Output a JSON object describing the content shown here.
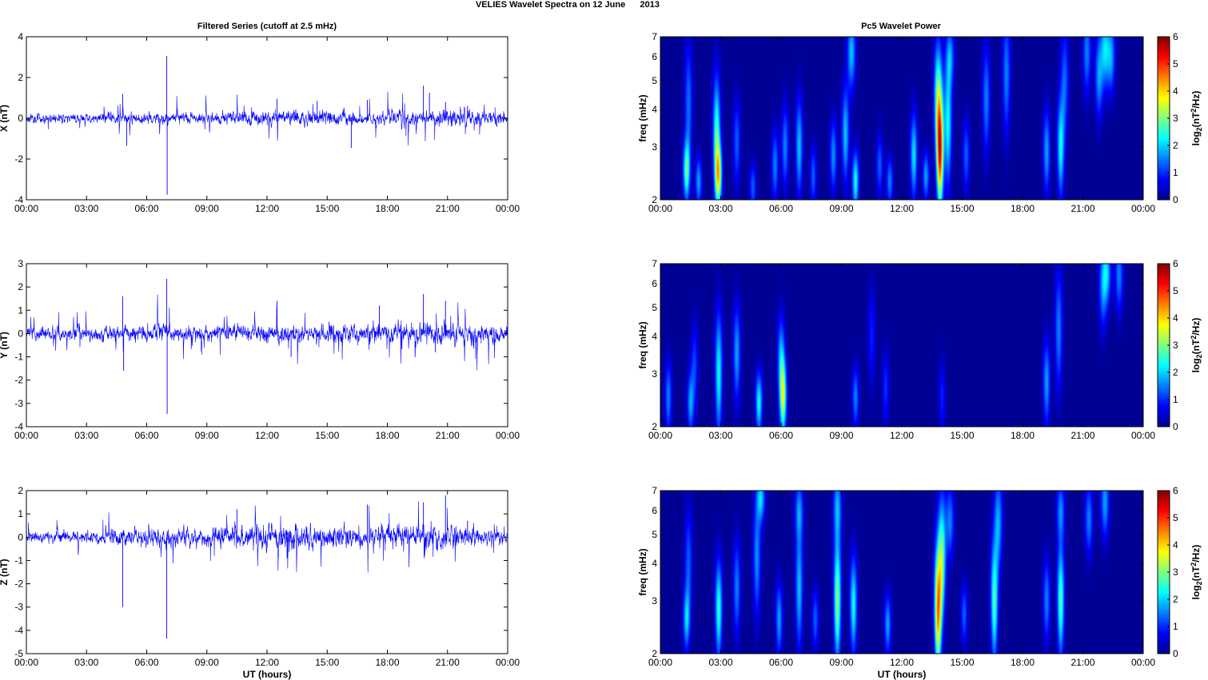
{
  "figure": {
    "suptitle": "VELIES Wavelet Spectra on 12 June      2013",
    "left_title": "Filtered Series (cutoff at 2.5 mHz)",
    "right_title": "Pc5 Wavelet Power",
    "colors": {
      "trace": "#0000ff",
      "axis": "#000000",
      "background": "#ffffff"
    }
  },
  "chart_data": [
    {
      "type": "line",
      "panel": "X",
      "xlabel": "",
      "ylabel": "X (nT)",
      "xlim": [
        0,
        24
      ],
      "ylim": [
        -4,
        4
      ],
      "xticks": [
        0,
        3,
        6,
        9,
        12,
        15,
        18,
        21,
        24
      ],
      "xticklabels": [
        "00:00",
        "03:00",
        "06:00",
        "09:00",
        "12:00",
        "15:00",
        "18:00",
        "21:00",
        "00:00"
      ],
      "yticks": [
        -4,
        -2,
        0,
        2,
        4
      ],
      "yticklabels": [
        "-4",
        "-2",
        "0",
        "2",
        "4"
      ],
      "noise_profile": [
        [
          0,
          0.18
        ],
        [
          4,
          0.18
        ],
        [
          6,
          0.22
        ],
        [
          10,
          0.22
        ],
        [
          12,
          0.3
        ],
        [
          15,
          0.3
        ],
        [
          16.5,
          0.2
        ],
        [
          18,
          0.26
        ],
        [
          19.5,
          0.32
        ],
        [
          21,
          0.34
        ],
        [
          24,
          0.22
        ]
      ],
      "spikes": [
        [
          4.8,
          1.2
        ],
        [
          5.0,
          -1.35
        ],
        [
          7.0,
          3.05
        ],
        [
          7.02,
          -3.75
        ],
        [
          12.5,
          0.95
        ],
        [
          14.5,
          0.85
        ],
        [
          16.2,
          -1.45
        ],
        [
          17.0,
          0.9
        ],
        [
          19.8,
          1.6
        ],
        [
          20.1,
          1.25
        ],
        [
          20.9,
          0.8
        ],
        [
          22.0,
          0.6
        ]
      ]
    },
    {
      "type": "line",
      "panel": "Y",
      "xlabel": "",
      "ylabel": "Y (nT)",
      "xlim": [
        0,
        24
      ],
      "ylim": [
        -4,
        3
      ],
      "xticks": [
        0,
        3,
        6,
        9,
        12,
        15,
        18,
        21,
        24
      ],
      "xticklabels": [
        "00:00",
        "03:00",
        "06:00",
        "09:00",
        "12:00",
        "15:00",
        "18:00",
        "21:00",
        "00:00"
      ],
      "yticks": [
        -4,
        -3,
        -2,
        -1,
        0,
        1,
        2,
        3
      ],
      "yticklabels": [
        "-4",
        "-3",
        "-2",
        "-1",
        "0",
        "1",
        "2",
        "3"
      ],
      "noise_profile": [
        [
          0,
          0.22
        ],
        [
          4,
          0.24
        ],
        [
          6,
          0.3
        ],
        [
          9,
          0.24
        ],
        [
          12,
          0.3
        ],
        [
          15,
          0.32
        ],
        [
          18,
          0.3
        ],
        [
          19.5,
          0.42
        ],
        [
          21,
          0.38
        ],
        [
          24,
          0.3
        ]
      ],
      "spikes": [
        [
          4.8,
          1.6
        ],
        [
          4.85,
          -1.6
        ],
        [
          7.0,
          2.35
        ],
        [
          7.02,
          -3.45
        ],
        [
          12.5,
          1.4
        ],
        [
          13.2,
          -1.0
        ],
        [
          17.6,
          1.2
        ],
        [
          19.8,
          1.7
        ],
        [
          20.4,
          -0.8
        ],
        [
          20.9,
          1.4
        ]
      ]
    },
    {
      "type": "line",
      "panel": "Z",
      "xlabel": "UT (hours)",
      "ylabel": "Z (nT)",
      "xlim": [
        0,
        24
      ],
      "ylim": [
        -5,
        2
      ],
      "xticks": [
        0,
        3,
        6,
        9,
        12,
        15,
        18,
        21,
        24
      ],
      "xticklabels": [
        "00:00",
        "03:00",
        "06:00",
        "09:00",
        "12:00",
        "15:00",
        "18:00",
        "21:00",
        "00:00"
      ],
      "yticks": [
        -5,
        -4,
        -3,
        -2,
        -1,
        0,
        1,
        2
      ],
      "yticklabels": [
        "-5",
        "-4",
        "-3",
        "-2",
        "-1",
        "0",
        "1",
        "2"
      ],
      "noise_profile": [
        [
          0,
          0.2
        ],
        [
          4,
          0.22
        ],
        [
          6,
          0.3
        ],
        [
          9,
          0.3
        ],
        [
          12,
          0.4
        ],
        [
          15,
          0.42
        ],
        [
          17,
          0.36
        ],
        [
          19.5,
          0.46
        ],
        [
          21,
          0.4
        ],
        [
          24,
          0.26
        ]
      ],
      "spikes": [
        [
          4.8,
          -3.0
        ],
        [
          7.0,
          -4.35
        ],
        [
          10.5,
          1.2
        ],
        [
          13.0,
          -0.9
        ],
        [
          17.0,
          1.4
        ],
        [
          19.8,
          1.5
        ],
        [
          20.9,
          1.8
        ],
        [
          22.0,
          0.7
        ]
      ]
    },
    {
      "type": "heatmap",
      "panel": "X",
      "xlabel": "",
      "ylabel": "freq (mHz)",
      "yscale": "log",
      "xlim": [
        0,
        24
      ],
      "ylim": [
        2,
        7
      ],
      "xticks": [
        0,
        3,
        6,
        9,
        12,
        15,
        18,
        21,
        24
      ],
      "xticklabels": [
        "00:00",
        "03:00",
        "06:00",
        "09:00",
        "12:00",
        "15:00",
        "18:00",
        "21:00",
        "00:00"
      ],
      "yticks": [
        2,
        3,
        4,
        5,
        6,
        7
      ],
      "yticklabels": [
        "2",
        "3",
        "4",
        "5",
        "6",
        "7"
      ],
      "colorbar": {
        "label": "log2(nT^2/Hz)",
        "label_main": "log",
        "label_sub": "2",
        "label_rest1": "(nT",
        "label_sup": "2",
        "label_rest2": "/Hz)",
        "range": [
          0,
          6
        ],
        "ticks": [
          "0",
          "1",
          "2",
          "3",
          "4",
          "5",
          "6"
        ]
      },
      "blobs": [
        [
          1.3,
          2.5,
          2.6,
          0.5
        ],
        [
          1.4,
          4.2,
          1.3,
          1.0
        ],
        [
          1.9,
          2.3,
          1.6,
          0.4
        ],
        [
          2.8,
          3.2,
          2.6,
          1.0
        ],
        [
          2.9,
          2.4,
          3.0,
          0.5
        ],
        [
          3.8,
          3.1,
          1.2,
          0.7
        ],
        [
          4.6,
          2.2,
          1.2,
          0.4
        ],
        [
          5.7,
          2.6,
          1.4,
          0.6
        ],
        [
          6.2,
          3.0,
          1.4,
          0.7
        ],
        [
          6.9,
          3.0,
          1.8,
          0.8
        ],
        [
          7.6,
          2.4,
          1.2,
          0.5
        ],
        [
          8.6,
          2.8,
          1.5,
          0.6
        ],
        [
          9.2,
          3.3,
          1.8,
          0.8
        ],
        [
          9.7,
          2.3,
          2.2,
          0.5
        ],
        [
          9.5,
          6.2,
          1.8,
          0.6
        ],
        [
          10.9,
          2.6,
          1.2,
          0.5
        ],
        [
          11.4,
          2.3,
          1.4,
          0.4
        ],
        [
          12.6,
          2.8,
          2.0,
          0.7
        ],
        [
          13.2,
          2.4,
          1.6,
          0.4
        ],
        [
          13.9,
          2.9,
          5.1,
          0.9
        ],
        [
          13.8,
          4.5,
          2.4,
          0.9
        ],
        [
          14.3,
          3.6,
          2.2,
          1.0
        ],
        [
          14.4,
          6.0,
          1.4,
          0.5
        ],
        [
          15.2,
          2.8,
          1.2,
          0.6
        ],
        [
          16.2,
          4.3,
          1.4,
          0.9
        ],
        [
          17.2,
          5.2,
          1.4,
          1.0
        ],
        [
          19.2,
          2.9,
          1.6,
          0.7
        ],
        [
          19.9,
          3.0,
          2.2,
          0.8
        ],
        [
          20.1,
          5.0,
          1.2,
          0.9
        ],
        [
          21.2,
          6.2,
          1.4,
          0.7
        ],
        [
          21.8,
          5.2,
          1.6,
          0.7
        ],
        [
          22.1,
          6.3,
          1.8,
          0.6
        ],
        [
          22.4,
          6.0,
          1.6,
          0.6
        ]
      ]
    },
    {
      "type": "heatmap",
      "panel": "Y",
      "xlabel": "",
      "ylabel": "freq (mHz)",
      "yscale": "log",
      "xlim": [
        0,
        24
      ],
      "ylim": [
        2,
        7
      ],
      "xticks": [
        0,
        3,
        6,
        9,
        12,
        15,
        18,
        21,
        24
      ],
      "xticklabels": [
        "00:00",
        "03:00",
        "06:00",
        "09:00",
        "12:00",
        "15:00",
        "18:00",
        "21:00",
        "00:00"
      ],
      "yticks": [
        2,
        3,
        4,
        5,
        6,
        7
      ],
      "yticklabels": [
        "2",
        "3",
        "4",
        "5",
        "6",
        "7"
      ],
      "colorbar": {
        "label": "log2(nT^2/Hz)",
        "label_main": "log",
        "label_sub": "2",
        "label_rest1": "(nT",
        "label_sup": "2",
        "label_rest2": "/Hz)",
        "range": [
          0,
          6
        ],
        "ticks": [
          "0",
          "1",
          "2",
          "3",
          "4",
          "5",
          "6"
        ]
      },
      "blobs": [
        [
          0.4,
          2.5,
          1.4,
          0.6
        ],
        [
          1.5,
          2.4,
          1.6,
          0.5
        ],
        [
          1.7,
          3.2,
          1.0,
          0.7
        ],
        [
          2.9,
          3.0,
          2.2,
          1.0
        ],
        [
          3.8,
          3.5,
          1.6,
          0.8
        ],
        [
          4.9,
          2.4,
          2.2,
          0.5
        ],
        [
          6.1,
          2.5,
          3.2,
          0.6
        ],
        [
          6.0,
          3.4,
          1.6,
          0.7
        ],
        [
          9.7,
          2.5,
          1.4,
          0.5
        ],
        [
          10.5,
          4.0,
          0.8,
          0.8
        ],
        [
          11.2,
          2.7,
          0.9,
          0.6
        ],
        [
          14.0,
          2.5,
          0.8,
          0.6
        ],
        [
          19.2,
          2.8,
          1.6,
          0.7
        ],
        [
          19.8,
          4.2,
          1.4,
          1.0
        ],
        [
          22.0,
          5.8,
          1.4,
          0.7
        ],
        [
          22.2,
          6.5,
          1.6,
          0.5
        ],
        [
          22.8,
          6.4,
          1.4,
          0.6
        ]
      ]
    },
    {
      "type": "heatmap",
      "panel": "Z",
      "xlabel": "UT (hours)",
      "ylabel": "freq (mHz)",
      "yscale": "log",
      "xlim": [
        0,
        24
      ],
      "ylim": [
        2,
        7
      ],
      "xticks": [
        0,
        3,
        6,
        9,
        12,
        15,
        18,
        21,
        24
      ],
      "xticklabels": [
        "00:00",
        "03:00",
        "06:00",
        "09:00",
        "12:00",
        "15:00",
        "18:00",
        "21:00",
        "00:00"
      ],
      "yticks": [
        2,
        3,
        4,
        5,
        6,
        7
      ],
      "yticklabels": [
        "2",
        "3",
        "4",
        "5",
        "6",
        "7"
      ],
      "colorbar": {
        "label": "log2(nT^2/Hz)",
        "label_main": "log",
        "label_sub": "2",
        "label_rest1": "(nT",
        "label_sup": "2",
        "label_rest2": "/Hz)",
        "range": [
          0,
          6
        ],
        "ticks": [
          "0",
          "1",
          "2",
          "3",
          "4",
          "5",
          "6"
        ]
      },
      "blobs": [
        [
          1.3,
          2.6,
          1.8,
          0.5
        ],
        [
          1.4,
          4.0,
          1.2,
          0.9
        ],
        [
          2.9,
          2.8,
          2.4,
          0.8
        ],
        [
          3.8,
          3.3,
          1.4,
          0.8
        ],
        [
          4.8,
          4.2,
          1.5,
          1.0
        ],
        [
          5.0,
          6.6,
          1.8,
          0.4
        ],
        [
          5.9,
          2.6,
          1.6,
          0.6
        ],
        [
          6.9,
          3.3,
          1.8,
          1.0
        ],
        [
          6.9,
          6.0,
          1.4,
          0.5
        ],
        [
          7.7,
          2.6,
          1.2,
          0.5
        ],
        [
          8.8,
          3.0,
          3.0,
          1.0
        ],
        [
          8.8,
          6.2,
          1.6,
          0.6
        ],
        [
          9.6,
          2.9,
          2.2,
          0.8
        ],
        [
          11.3,
          2.5,
          1.6,
          0.5
        ],
        [
          13.8,
          2.8,
          4.4,
          1.0
        ],
        [
          14.0,
          4.2,
          2.6,
          1.0
        ],
        [
          14.4,
          5.5,
          1.4,
          0.6
        ],
        [
          15.1,
          2.7,
          1.2,
          0.5
        ],
        [
          16.6,
          3.0,
          2.6,
          1.0
        ],
        [
          16.8,
          5.5,
          1.6,
          0.8
        ],
        [
          19.2,
          3.0,
          1.4,
          0.7
        ],
        [
          19.9,
          3.0,
          2.6,
          0.9
        ],
        [
          19.9,
          6.0,
          1.4,
          0.5
        ],
        [
          21.3,
          5.6,
          1.4,
          0.6
        ],
        [
          22.1,
          6.4,
          1.6,
          0.6
        ]
      ]
    }
  ]
}
